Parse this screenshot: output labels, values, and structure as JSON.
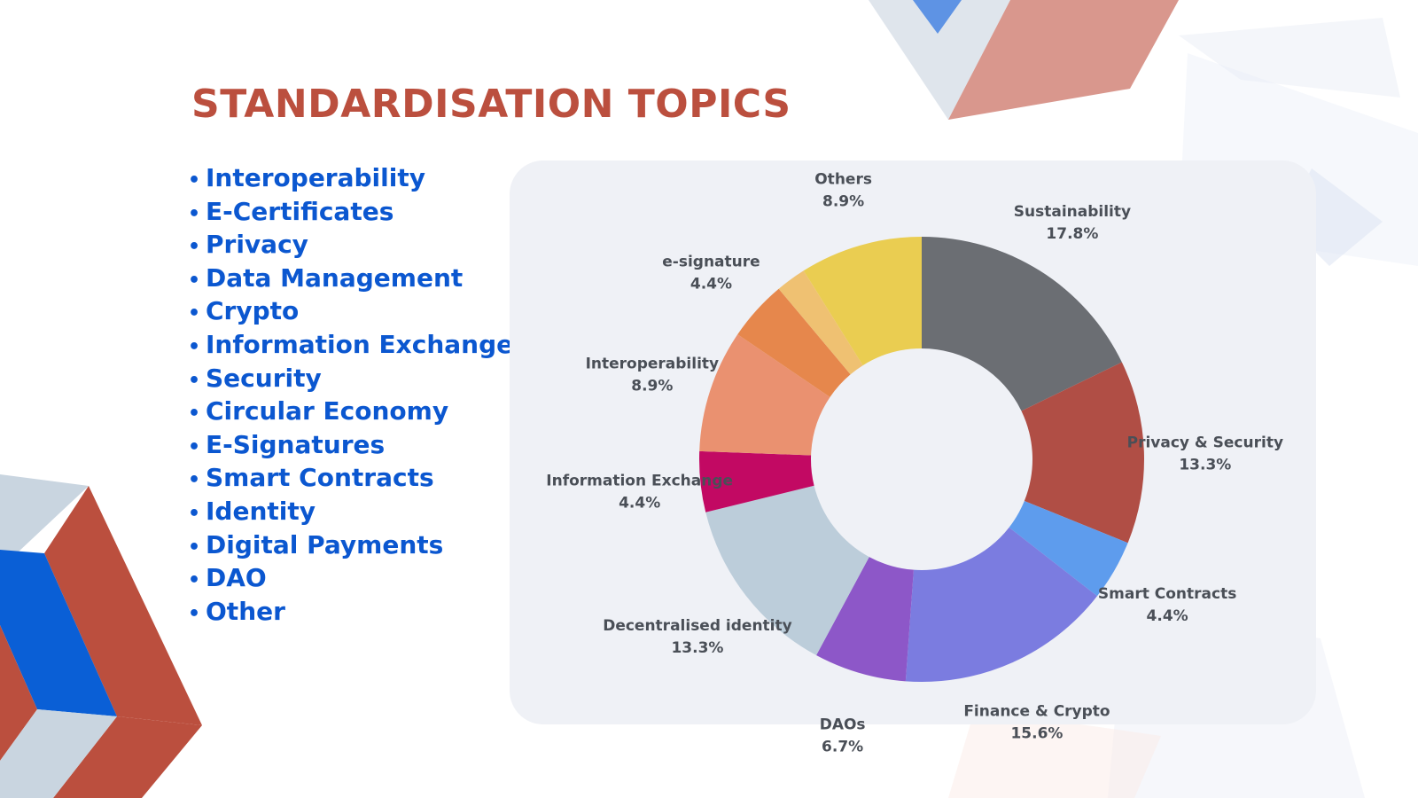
{
  "title": "STANDARDISATION TOPICS",
  "topics": [
    "Interoperability",
    "E-Certificates",
    "Privacy",
    "Data Management",
    "Crypto",
    "Information Exchange",
    "Security",
    "Circular Economy",
    "E-Signatures",
    "Smart Contracts",
    "Identity",
    "Digital Payments",
    "DAO",
    "Other"
  ],
  "colors": {
    "title": "#bb4f3e",
    "list": "#0b57d0",
    "panel": "#eff1f6",
    "label": "#4a4f57"
  },
  "chart_data": {
    "type": "pie",
    "style": "donut",
    "title": "",
    "slices": [
      {
        "name": "Sustainability",
        "value": 17.8,
        "display": "17.8%",
        "color": "#6b6e73"
      },
      {
        "name": "Privacy & Security",
        "value": 13.3,
        "display": "13.3%",
        "color": "#b04e45"
      },
      {
        "name": "Smart Contracts",
        "value": 4.4,
        "display": "4.4%",
        "color": "#5e9ced"
      },
      {
        "name": "Finance & Crypto",
        "value": 15.6,
        "display": "15.6%",
        "color": "#7b7ce0"
      },
      {
        "name": "DAOs",
        "value": 6.7,
        "display": "6.7%",
        "color": "#8d57c8"
      },
      {
        "name": "Decentralised identity",
        "value": 13.3,
        "display": "13.3%",
        "color": "#bccdda"
      },
      {
        "name": "Information Exchange",
        "value": 4.4,
        "display": "4.4%",
        "color": "#c20963"
      },
      {
        "name": "Interoperability",
        "value": 8.9,
        "display": "8.9%",
        "color": "#ea9170"
      },
      {
        "name": "e-signature",
        "value": 4.4,
        "display": "4.4%",
        "color": "#e6874c"
      },
      {
        "name": "",
        "value": 2.2,
        "display": "",
        "color": "#efc172"
      },
      {
        "name": "Others",
        "value": 8.9,
        "display": "8.9%",
        "color": "#eacd51"
      }
    ]
  }
}
